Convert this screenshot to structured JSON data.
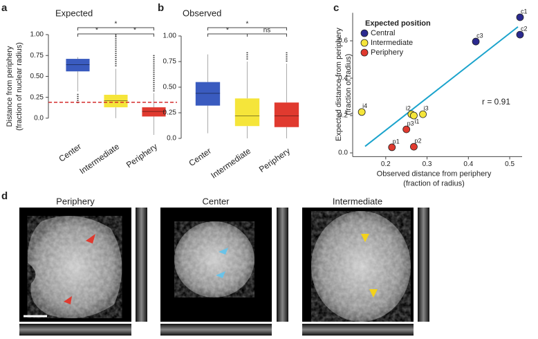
{
  "chart_data": [
    {
      "type": "box",
      "panel": "a",
      "title": "Expected",
      "ylabel": [
        "Distance from periphery",
        "(fraction of nuclear radius)"
      ],
      "categories": [
        "Center",
        "Intermediate",
        "Periphery"
      ],
      "colors": [
        "#3a5bbf",
        "#f5e53a",
        "#e03a2f"
      ],
      "boxes": [
        {
          "whisker_low": 0.32,
          "q1": 0.56,
          "median": 0.64,
          "q3": 0.71,
          "whisker_high": 0.73,
          "outliers": [
            0.18,
            0.29
          ]
        },
        {
          "whisker_low": 0.0,
          "q1": 0.13,
          "median": 0.21,
          "q3": 0.28,
          "whisker_high": 0.59,
          "outliers": [
            0.62,
            1.0
          ]
        },
        {
          "whisker_low": -0.2,
          "q1": 0.02,
          "median": 0.08,
          "q3": 0.13,
          "whisker_high": 0.3,
          "outliers": [
            0.32,
            0.76
          ]
        }
      ],
      "refline": 0.19,
      "refline_color": "#d42b2b",
      "comparisons": [
        {
          "pair": [
            "Center",
            "Intermediate"
          ],
          "label": "*"
        },
        {
          "pair": [
            "Center",
            "Periphery"
          ],
          "label": "*"
        },
        {
          "pair": [
            "Intermediate",
            "Periphery"
          ],
          "label": "*"
        }
      ],
      "ylim": [
        -0.25,
        1.05
      ],
      "yticks": [
        {
          "value": 1,
          "label": "1.00"
        },
        0.75,
        {
          "value": 0.5,
          "label": "0.50"
        },
        0.25,
        {
          "value": 0,
          "label": "0.0"
        }
      ]
    },
    {
      "type": "box",
      "panel": "b",
      "title": "Observed",
      "categories": [
        "Center",
        "Intermediate",
        "Periphery"
      ],
      "colors": [
        "#3a5bbf",
        "#f5e53a",
        "#e03a2f"
      ],
      "boxes": [
        {
          "whisker_low": 0.05,
          "q1": 0.32,
          "median": 0.44,
          "q3": 0.55,
          "whisker_high": 0.82,
          "outliers": null
        },
        {
          "whisker_low": 0.0,
          "q1": 0.12,
          "median": 0.22,
          "q3": 0.39,
          "whisker_high": 0.75,
          "outliers": [
            0.77,
            0.85
          ]
        },
        {
          "whisker_low": 0.0,
          "q1": 0.11,
          "median": 0.22,
          "q3": 0.35,
          "whisker_high": 0.73,
          "outliers": [
            0.75,
            0.84
          ]
        }
      ],
      "comparisons": [
        {
          "pair": [
            "Center",
            "Intermediate"
          ],
          "label": "*"
        },
        {
          "pair": [
            "Center",
            "Periphery"
          ],
          "label": "*"
        },
        {
          "pair": [
            "Intermediate",
            "Periphery"
          ],
          "label": "ns"
        }
      ],
      "ylim": [
        -0.05,
        1.05
      ],
      "yticks": [
        {
          "value": 1,
          "label": "1.00"
        },
        0.75,
        {
          "value": 0.5,
          "label": "0.50"
        },
        0.25,
        {
          "value": 0,
          "label": "0.0"
        }
      ]
    },
    {
      "type": "scatter",
      "panel": "c",
      "legend_title": "Expected position",
      "xlabel": [
        "Observed distance from periphery",
        "(fraction of radius)"
      ],
      "ylabel": [
        "Expected distance from periphery",
        "(fraction of radius)"
      ],
      "series": [
        {
          "name": "Central",
          "color": "#2b2a8f",
          "labels": [
            "c1",
            "c2",
            "c3"
          ],
          "x": [
            0.525,
            0.525,
            0.418
          ],
          "values": [
            0.726,
            0.633,
            0.596
          ]
        },
        {
          "name": "Intermediate",
          "color": "#f5e53a",
          "labels": [
            "i4",
            "i2",
            "i1",
            "i3"
          ],
          "x": [
            0.142,
            0.262,
            0.268,
            0.29
          ],
          "values": [
            0.219,
            0.207,
            0.2,
            0.207
          ]
        },
        {
          "name": "Periphery",
          "color": "#e03a2f",
          "labels": [
            "p3",
            "p1",
            "p2"
          ],
          "x": [
            0.25,
            0.215,
            0.268
          ],
          "values": [
            0.126,
            0.03,
            0.033
          ]
        }
      ],
      "fit": {
        "x": [
          0.15,
          0.52
        ],
        "values": [
          0.035,
          0.675
        ],
        "color": "#1aa3cc"
      },
      "annotation": "r = 0.91",
      "xlim": [
        0.12,
        0.53
      ],
      "xticks": [
        0.2,
        0.3,
        0.4,
        0.5
      ],
      "ylim": [
        -0.02,
        0.75
      ],
      "yticks": [
        0.6,
        0.4,
        0.2,
        {
          "value": 0,
          "label": "0.0"
        }
      ]
    }
  ],
  "images": {
    "panel": "d",
    "titles": [
      "Periphery",
      "Center",
      "Intermediate"
    ]
  }
}
